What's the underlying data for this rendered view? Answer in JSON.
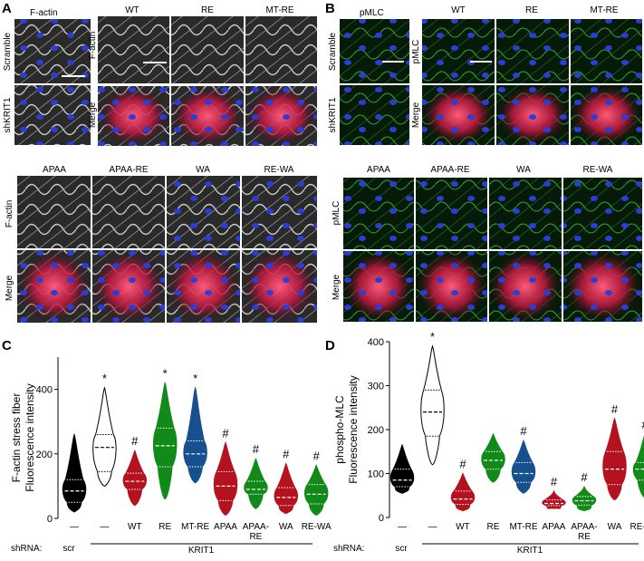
{
  "panel_a": {
    "letter": "A",
    "small_col_label": "F-actin",
    "small_row_labels": [
      "Scramble",
      "shKRIT1"
    ],
    "top_cols": [
      "WT",
      "RE",
      "MT-RE"
    ],
    "top_row_labels": [
      "F-actin",
      "Merge"
    ],
    "bottom_cols": [
      "APAA",
      "APAA-RE",
      "WA",
      "RE-WA"
    ],
    "bottom_row_labels": [
      "F-actin",
      "Merge"
    ]
  },
  "panel_b": {
    "letter": "B",
    "small_col_label": "pMLC",
    "small_row_labels": [
      "Scramble",
      "shKRIT1"
    ],
    "top_cols": [
      "WT",
      "RE",
      "MT-RE"
    ],
    "top_row_labels": [
      "pMLC",
      "Merge"
    ],
    "bottom_cols": [
      "APAA",
      "APAA-RE",
      "WA",
      "RE-WA"
    ],
    "bottom_row_labels": [
      "pMLC",
      "Merge"
    ]
  },
  "panel_c": {
    "letter": "C",
    "shrna_label": "shRNA:",
    "scr_label": "scr",
    "krit_label": "KRIT1"
  },
  "panel_d": {
    "letter": "D",
    "shrna_label": "shRNA:",
    "scr_label": "scr",
    "krit_label": "KRIT1"
  },
  "colors": {
    "actin_gray": "#8a8a8a",
    "nuclei_blue": "#2a3dd6",
    "merge_red": "#e8244e",
    "pmlc_green": "#2fae3c",
    "violin_red": "#b3121e",
    "violin_green": "#128a1a",
    "violin_blue": "#17508f"
  },
  "chart_data": [
    {
      "type": "violin",
      "ylabel": [
        "F-actin stress fiber",
        "Fluorescence intensity"
      ],
      "ylim": [
        0,
        500
      ],
      "yticks": [
        0,
        200,
        400
      ],
      "categories": [
        "—",
        "—",
        "WT",
        "RE",
        "MT-RE",
        "APAA",
        "APAA-\nRE",
        "WA",
        "RE-WA"
      ],
      "markers": [
        "",
        "*",
        "#",
        "*",
        "*",
        "#",
        "#",
        "#",
        "#"
      ],
      "fills": [
        "#000000",
        "#ffffff",
        "#b3121e",
        "#128a1a",
        "#17508f",
        "#b3121e",
        "#128a1a",
        "#b3121e",
        "#128a1a"
      ],
      "series": [
        {
          "min": 20,
          "q1": 50,
          "median": 85,
          "q3": 120,
          "max": 260
        },
        {
          "min": 100,
          "q1": 145,
          "median": 220,
          "q3": 260,
          "max": 405
        },
        {
          "min": 40,
          "q1": 90,
          "median": 115,
          "q3": 140,
          "max": 210
        },
        {
          "min": 60,
          "q1": 160,
          "median": 225,
          "q3": 280,
          "max": 420
        },
        {
          "min": 110,
          "q1": 160,
          "median": 200,
          "q3": 240,
          "max": 405
        },
        {
          "min": 10,
          "q1": 55,
          "median": 100,
          "q3": 145,
          "max": 235
        },
        {
          "min": 30,
          "q1": 75,
          "median": 90,
          "q3": 115,
          "max": 185
        },
        {
          "min": 15,
          "q1": 40,
          "median": 65,
          "q3": 95,
          "max": 170
        },
        {
          "min": 10,
          "q1": 45,
          "median": 75,
          "q3": 105,
          "max": 165
        }
      ]
    },
    {
      "type": "violin",
      "ylabel": [
        "phospho-MLC",
        "Fluorescence intensity"
      ],
      "ylim": [
        0,
        400
      ],
      "yticks": [
        0,
        100,
        200,
        300,
        400
      ],
      "categories": [
        "—",
        "—",
        "WT",
        "RE",
        "MT-RE",
        "APAA",
        "APAA-\nRE",
        "WA",
        "RE-WA"
      ],
      "markers": [
        "",
        "*",
        "#",
        "",
        "#",
        "#",
        "#",
        "#",
        "#"
      ],
      "fills": [
        "#000000",
        "#ffffff",
        "#b3121e",
        "#128a1a",
        "#17508f",
        "#b3121e",
        "#128a1a",
        "#b3121e",
        "#128a1a"
      ],
      "series": [
        {
          "min": 55,
          "q1": 70,
          "median": 85,
          "q3": 110,
          "max": 165
        },
        {
          "min": 120,
          "q1": 185,
          "median": 240,
          "q3": 290,
          "max": 390
        },
        {
          "min": 15,
          "q1": 30,
          "median": 42,
          "q3": 60,
          "max": 100
        },
        {
          "min": 80,
          "q1": 110,
          "median": 130,
          "q3": 150,
          "max": 190
        },
        {
          "min": 55,
          "q1": 80,
          "median": 100,
          "q3": 125,
          "max": 175
        },
        {
          "min": 20,
          "q1": 27,
          "median": 32,
          "q3": 40,
          "max": 60
        },
        {
          "min": 15,
          "q1": 28,
          "median": 38,
          "q3": 48,
          "max": 70
        },
        {
          "min": 40,
          "q1": 75,
          "median": 110,
          "q3": 150,
          "max": 225
        },
        {
          "min": 45,
          "q1": 85,
          "median": 110,
          "q3": 125,
          "max": 190
        }
      ]
    }
  ]
}
